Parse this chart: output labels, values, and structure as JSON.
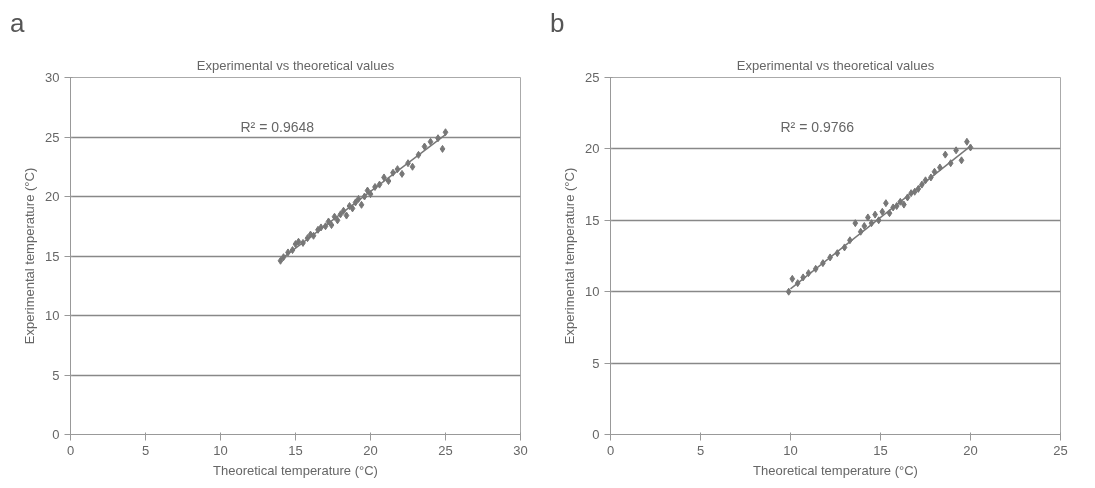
{
  "chart_data": [
    {
      "type": "scatter",
      "title": "Experimental vs theoretical values",
      "xlabel": "Theoretical temperature (°C)",
      "ylabel": "Experimental temperature (°C)",
      "xlim": [
        0,
        30
      ],
      "ylim": [
        0,
        30
      ],
      "xticks": [
        0,
        5,
        10,
        15,
        20,
        25,
        30
      ],
      "yticks": [
        0,
        5,
        10,
        15,
        20,
        25,
        30
      ],
      "grid": "y",
      "annotations": [
        "a",
        "R² = 0.9648"
      ],
      "series": [
        {
          "marker": "diamond",
          "color": "#777777",
          "x": [
            14.0,
            14.2,
            14.5,
            14.8,
            15.0,
            15.2,
            15.5,
            15.8,
            16.0,
            16.2,
            16.5,
            16.7,
            17.0,
            17.2,
            17.4,
            17.6,
            17.8,
            18.0,
            18.2,
            18.4,
            18.6,
            18.8,
            19.0,
            19.2,
            19.4,
            19.6,
            19.8,
            20.0,
            20.3,
            20.6,
            20.9,
            21.2,
            21.5,
            21.8,
            22.1,
            22.5,
            22.8,
            23.2,
            23.6,
            24.0,
            24.5,
            24.8,
            25.0
          ],
          "values": [
            14.6,
            14.9,
            15.3,
            15.5,
            16.0,
            16.2,
            16.1,
            16.5,
            16.8,
            16.7,
            17.2,
            17.4,
            17.5,
            17.9,
            17.6,
            18.3,
            18.0,
            18.5,
            18.8,
            18.4,
            19.2,
            19.0,
            19.5,
            19.8,
            19.3,
            20.0,
            20.5,
            20.2,
            20.8,
            21.0,
            21.6,
            21.3,
            22.0,
            22.3,
            21.9,
            22.8,
            22.5,
            23.5,
            24.2,
            24.6,
            24.9,
            24.0,
            25.4
          ]
        },
        {
          "type": "line",
          "color": "#777777",
          "x": [
            14,
            25
          ],
          "values": [
            14.7,
            25.2
          ]
        }
      ]
    },
    {
      "type": "scatter",
      "title": "Experimental vs theoretical values",
      "xlabel": "Theoretical temperature (°C)",
      "ylabel": "Experimental temperature (°C)",
      "xlim": [
        0,
        25
      ],
      "ylim": [
        0,
        25
      ],
      "xticks": [
        0,
        5,
        10,
        15,
        20,
        25
      ],
      "yticks": [
        0,
        5,
        10,
        15,
        20,
        25
      ],
      "grid": "y",
      "annotations": [
        "b",
        "R² = 0.9766"
      ],
      "series": [
        {
          "marker": "diamond",
          "color": "#777777",
          "x": [
            9.9,
            10.1,
            10.4,
            10.7,
            11.0,
            11.4,
            11.8,
            12.2,
            12.6,
            13.0,
            13.3,
            13.6,
            13.9,
            14.1,
            14.3,
            14.5,
            14.7,
            14.9,
            15.1,
            15.3,
            15.5,
            15.7,
            15.9,
            16.1,
            16.3,
            16.5,
            16.7,
            16.9,
            17.1,
            17.3,
            17.5,
            17.8,
            18.0,
            18.3,
            18.6,
            18.9,
            19.2,
            19.5,
            19.8,
            20.0
          ],
          "values": [
            10.0,
            10.9,
            10.6,
            11.0,
            11.3,
            11.6,
            12.0,
            12.4,
            12.7,
            13.1,
            13.6,
            14.8,
            14.2,
            14.6,
            15.2,
            14.8,
            15.4,
            15.0,
            15.6,
            16.2,
            15.5,
            15.9,
            16.0,
            16.3,
            16.1,
            16.6,
            16.9,
            17.0,
            17.2,
            17.5,
            17.8,
            18.0,
            18.4,
            18.7,
            19.6,
            19.0,
            19.9,
            19.2,
            20.5,
            20.1
          ]
        },
        {
          "type": "line",
          "color": "#777777",
          "x": [
            10,
            20
          ],
          "values": [
            10.2,
            20.2
          ]
        }
      ]
    }
  ]
}
